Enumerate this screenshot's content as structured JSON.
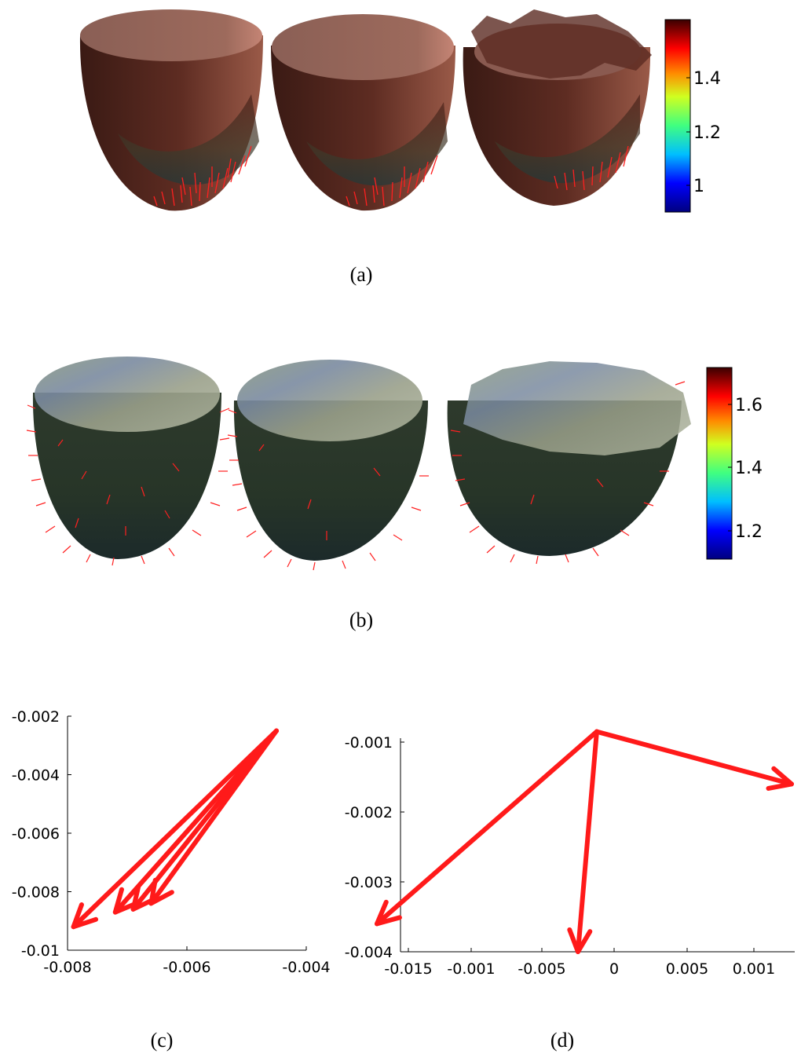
{
  "figure": {
    "caption_a": "(a)",
    "caption_b": "(b)",
    "caption_c": "(c)",
    "caption_d": "(d)",
    "colorbar_a": {
      "ticks": [
        "1.4",
        "1.2",
        "1"
      ]
    },
    "colorbar_b": {
      "ticks": [
        "1.6",
        "1.4",
        "1.2"
      ]
    },
    "colors": {
      "arrow": "#ff1a1a",
      "surface_a": "#5a2a20",
      "surface_b": "#2d3b2e"
    }
  },
  "chart_data": [
    {
      "type": "scatter",
      "panel": "(c)",
      "xlim": [
        -0.008,
        -0.004
      ],
      "ylim": [
        -0.01,
        -0.002
      ],
      "xticks": [
        "-0.008",
        "-0.006",
        "-0.004"
      ],
      "yticks": [
        "-0.002",
        "-0.004",
        "-0.006",
        "-0.008",
        "-0.01"
      ],
      "arrows": [
        {
          "x0": -0.0045,
          "y0": -0.0025,
          "x1": -0.0079,
          "y1": -0.0092
        },
        {
          "x0": -0.0045,
          "y0": -0.0025,
          "x1": -0.0072,
          "y1": -0.0087
        },
        {
          "x0": -0.0045,
          "y0": -0.0025,
          "x1": -0.0069,
          "y1": -0.0086
        },
        {
          "x0": -0.0045,
          "y0": -0.0025,
          "x1": -0.0066,
          "y1": -0.0084
        }
      ]
    },
    {
      "type": "scatter",
      "panel": "(d)",
      "xticks": [
        "-0.015",
        "-0.001",
        "-0.005",
        "0",
        "0.005",
        "0.001"
      ],
      "yticks": [
        "-0.001",
        "-0.002",
        "-0.003",
        "-0.004"
      ],
      "ylim": [
        -0.004,
        -0.001
      ],
      "arrows": [
        {
          "x0": -0.0012,
          "y0": -0.00085,
          "x1": -0.0175,
          "y1": -0.0036
        },
        {
          "x0": -0.0012,
          "y0": -0.00085,
          "x1": -0.0025,
          "y1": -0.004
        },
        {
          "x0": -0.0012,
          "y0": -0.00085,
          "x1": 0.0152,
          "y1": -0.0016
        }
      ]
    }
  ]
}
